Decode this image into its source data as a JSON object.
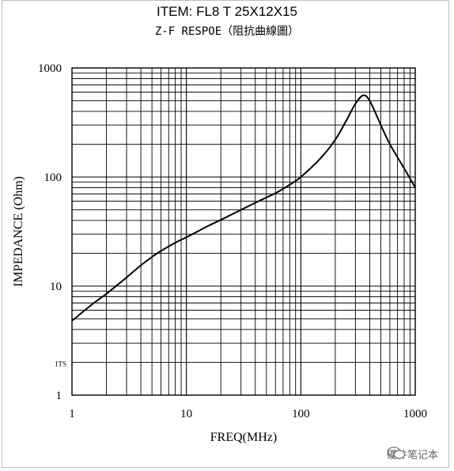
{
  "chart_data": {
    "type": "line",
    "title": "ITEM:   FL8 T 25X12X15",
    "subtitle": "Z-F RESPOE（阻抗曲線圖）",
    "xlabel": "FREQ(MHz)",
    "ylabel": "IMPEDANCE (Ohm)",
    "x_scale": "log",
    "y_scale": "log",
    "xlim": [
      1,
      1000
    ],
    "ylim": [
      1,
      1000
    ],
    "x_ticks": [
      "1",
      "10",
      "100",
      "1000"
    ],
    "y_ticks": [
      "1",
      "10",
      "100",
      "1000"
    ],
    "y_minor_label": "1TS",
    "grid": true,
    "series": [
      {
        "x": [
          1,
          1.5,
          2,
          3,
          4,
          5,
          6,
          8,
          10,
          15,
          20,
          30,
          40,
          50,
          60,
          80,
          100,
          150,
          200,
          250,
          300,
          350,
          400,
          500,
          600,
          800,
          1000
        ],
        "y": [
          4.8,
          6.8,
          8.5,
          12,
          15.5,
          18.5,
          21,
          25,
          28,
          35,
          40.5,
          50,
          58,
          65,
          71,
          85,
          100,
          150,
          220,
          330,
          470,
          560,
          500,
          300,
          200,
          120,
          80
        ]
      }
    ]
  },
  "watermark": "硬件笔记本"
}
